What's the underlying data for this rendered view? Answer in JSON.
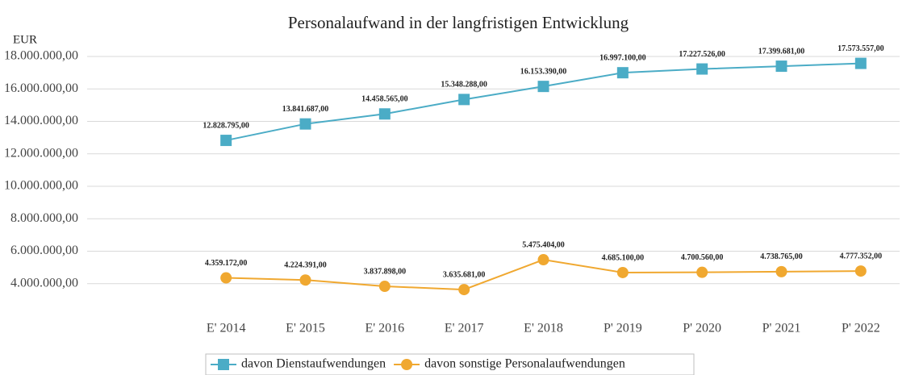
{
  "chart_data": {
    "type": "line",
    "title": "Personalaufwand in der langfristigen Entwicklung",
    "y_label": "EUR",
    "categories": [
      "E' 2014",
      "E' 2015",
      "E' 2016",
      "E' 2017",
      "E' 2018",
      "P' 2019",
      "P' 2020",
      "P' 2021",
      "P' 2022"
    ],
    "series": [
      {
        "name": "davon Dienstaufwendungen",
        "color": "#4bacc6",
        "marker": "square",
        "values": [
          12828795,
          13841687,
          14458565,
          15348288,
          16153390,
          16997100,
          17227526,
          17399681,
          17573557
        ],
        "value_labels": [
          "12.828.795,00",
          "13.841.687,00",
          "14.458.565,00",
          "15.348.288,00",
          "16.153.390,00",
          "16.997.100,00",
          "17.227.526,00",
          "17.399.681,00",
          "17.573.557,00"
        ]
      },
      {
        "name": "davon sonstige Personalaufwendungen",
        "color": "#f0a830",
        "marker": "circle",
        "values": [
          4359172,
          4224391,
          3837898,
          3635681,
          5475404,
          4685100,
          4700560,
          4738765,
          4777352
        ],
        "value_labels": [
          "4.359.172,00",
          "4.224.391,00",
          "3.837.898,00",
          "3.635.681,00",
          "5.475.404,00",
          "4.685.100,00",
          "4.700.560,00",
          "4.738.765,00",
          "4.777.352,00"
        ]
      }
    ],
    "ylim": [
      2000000,
      18000000
    ],
    "yticks": [
      {
        "value": 4000000,
        "label": "4.000.000,00"
      },
      {
        "value": 6000000,
        "label": "6.000.000,00"
      },
      {
        "value": 8000000,
        "label": "8.000.000,00"
      },
      {
        "value": 10000000,
        "label": "10.000.000,00"
      },
      {
        "value": 12000000,
        "label": "12.000.000,00"
      },
      {
        "value": 14000000,
        "label": "14.000.000,00"
      },
      {
        "value": 16000000,
        "label": "16.000.000,00"
      },
      {
        "value": 18000000,
        "label": "18.000.000,00"
      }
    ],
    "grid": true,
    "legend": "bottom"
  }
}
